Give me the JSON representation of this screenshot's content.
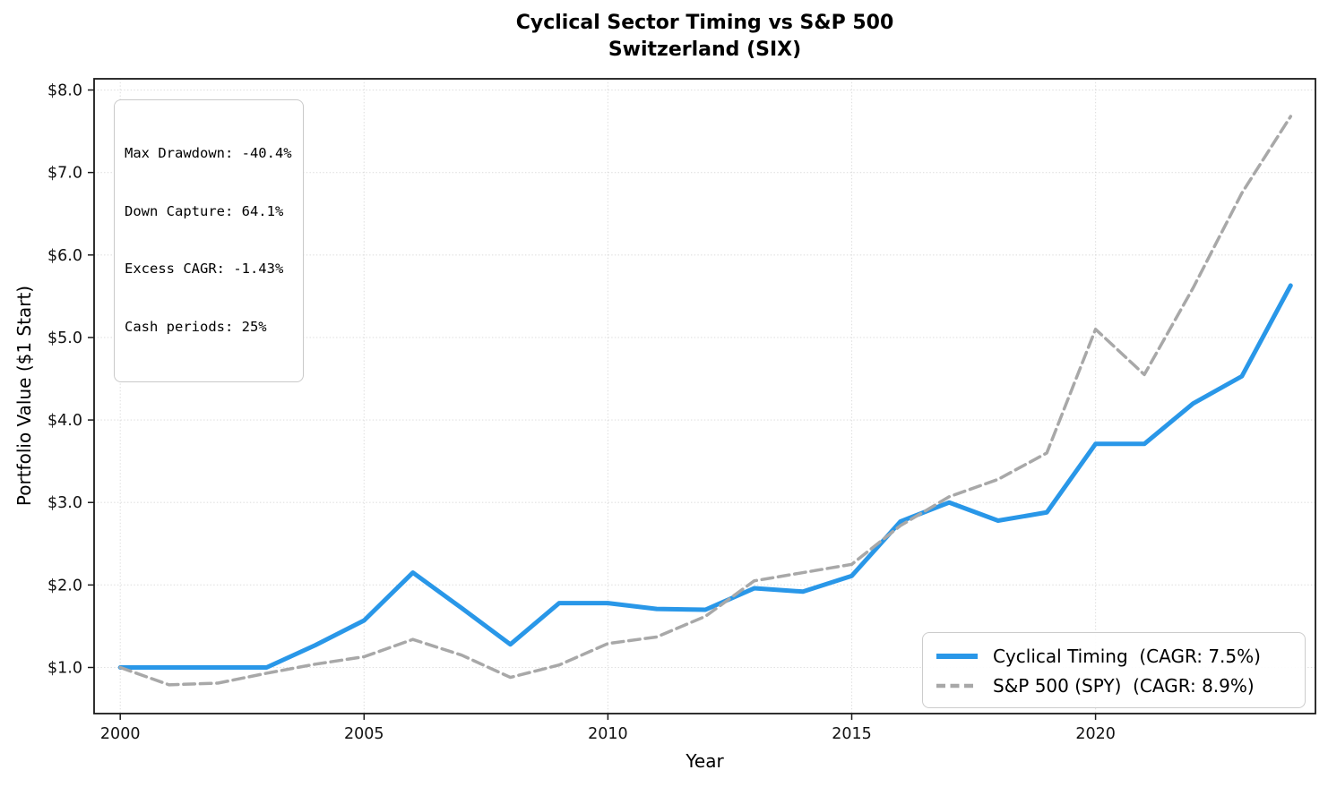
{
  "title": {
    "line1": "Cyclical Sector Timing vs S&P 500",
    "line2": "Switzerland (SIX)"
  },
  "axes": {
    "xlabel": "Year",
    "ylabel": "Portfolio Value ($1 Start)",
    "x_ticks": [
      {
        "year": 2000,
        "label": "2000"
      },
      {
        "year": 2005,
        "label": "2005"
      },
      {
        "year": 2010,
        "label": "2010"
      },
      {
        "year": 2015,
        "label": "2015"
      },
      {
        "year": 2020,
        "label": "2020"
      }
    ],
    "y_ticks": [
      {
        "value": 1.0,
        "label": "$1.0"
      },
      {
        "value": 2.0,
        "label": "$2.0"
      },
      {
        "value": 3.0,
        "label": "$3.0"
      },
      {
        "value": 4.0,
        "label": "$4.0"
      },
      {
        "value": 5.0,
        "label": "$5.0"
      },
      {
        "value": 6.0,
        "label": "$6.0"
      },
      {
        "value": 7.0,
        "label": "$7.0"
      },
      {
        "value": 8.0,
        "label": "$8.0"
      }
    ]
  },
  "stats_box": {
    "lines": [
      "Max Drawdown: -40.4%",
      "Down Capture: 64.1%",
      "Excess CAGR: -1.43%",
      "Cash periods: 25%"
    ]
  },
  "legend": {
    "position": "lower right",
    "items": [
      {
        "label": "Cyclical Timing  (CAGR: 7.5%)",
        "color": "#2997e8",
        "line_style": "solid",
        "line_width": 5
      },
      {
        "label": "S&P 500 (SPY)  (CAGR: 8.9%)",
        "color": "#a8a8a8",
        "line_style": "dashed",
        "line_width": 3.5
      }
    ]
  },
  "chart_data": {
    "type": "line",
    "title": "Cyclical Sector Timing vs S&P 500 — Switzerland (SIX)",
    "xlabel": "Year",
    "ylabel": "Portfolio Value ($1 Start)",
    "grid": true,
    "legend_position": "lower right",
    "xlim": [
      1999.4,
      2024.55
    ],
    "ylim": [
      0.42,
      8.14
    ],
    "x": [
      2000,
      2001,
      2002,
      2003,
      2004,
      2005,
      2006,
      2007,
      2008,
      2009,
      2010,
      2011,
      2012,
      2013,
      2014,
      2015,
      2016,
      2017,
      2018,
      2019,
      2020,
      2021,
      2022,
      2023,
      2024
    ],
    "series": [
      {
        "id": "cyclical-timing",
        "name": "Cyclical Timing",
        "cagr": "7.5%",
        "color": "#2997e8",
        "line_style": "solid",
        "line_width": 5,
        "values": [
          1.0,
          1.0,
          1.0,
          1.0,
          1.27,
          1.57,
          2.15,
          1.72,
          1.28,
          1.78,
          1.78,
          1.71,
          1.7,
          1.96,
          1.92,
          2.11,
          2.77,
          3.0,
          2.78,
          2.88,
          3.71,
          3.71,
          4.2,
          4.53,
          5.63
        ]
      },
      {
        "id": "sp500-spy",
        "name": "S&P 500 (SPY)",
        "cagr": "8.9%",
        "color": "#a8a8a8",
        "line_style": "dashed",
        "line_width": 3.5,
        "values": [
          1.0,
          0.79,
          0.81,
          0.93,
          1.04,
          1.13,
          1.34,
          1.15,
          0.88,
          1.03,
          1.29,
          1.37,
          1.62,
          2.05,
          2.15,
          2.25,
          2.72,
          3.07,
          3.28,
          3.6,
          5.1,
          4.55,
          5.6,
          6.75,
          7.68
        ]
      }
    ]
  }
}
